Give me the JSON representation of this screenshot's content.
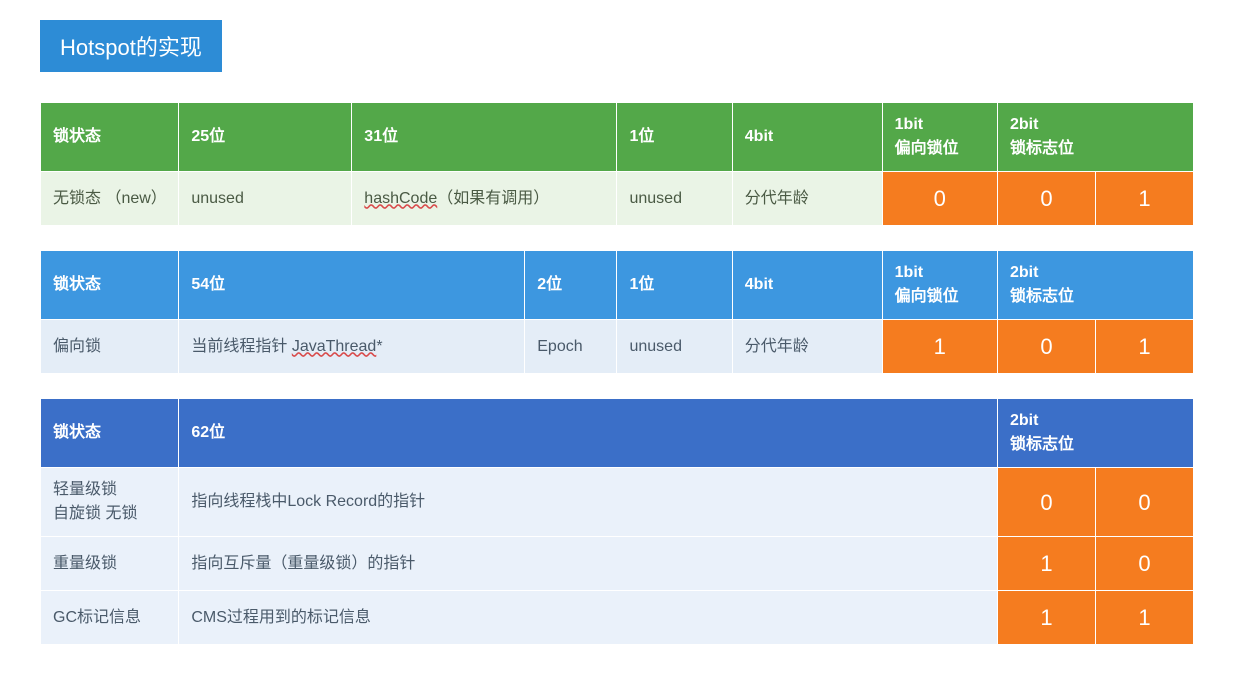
{
  "title": "Hotspot的实现",
  "colors": {
    "title_bg": "#2d8cd6",
    "green": "#53a849",
    "blue": "#3d97e0",
    "dblue": "#3b6fc8",
    "orange": "#f57c1f",
    "row_lgreen": "#eaf4e6",
    "row_lblue": "#e4edf7",
    "row_lblue2": "#eaf1fa"
  },
  "table1": {
    "headers": {
      "c0": "锁状态",
      "c1": "25位",
      "c2": "31位",
      "c3": "1位",
      "c4": "4bit",
      "c5a": "1bit",
      "c5b": "偏向锁位",
      "c6a": "2bit",
      "c6b": "锁标志位"
    },
    "row": {
      "c0": "无锁态 （new）",
      "c1": "unused",
      "c2_prefix": "hashCode",
      "c2_suffix": "（如果有调用）",
      "c3": "unused",
      "c4": "分代年龄",
      "bit_bias": "0",
      "bit_flag_a": "0",
      "bit_flag_b": "1"
    },
    "col_widths": [
      "12%",
      "15%",
      "23%",
      "10%",
      "13%",
      "10%",
      "8.5%",
      "8.5%"
    ]
  },
  "table2": {
    "headers": {
      "c0": "锁状态",
      "c1": "54位",
      "c2": "2位",
      "c3": "1位",
      "c4": "4bit",
      "c5a": "1bit",
      "c5b": "偏向锁位",
      "c6a": "2bit",
      "c6b": "锁标志位"
    },
    "row": {
      "c0": "偏向锁",
      "c1_prefix": "当前线程指针 ",
      "c1_red": "JavaThread",
      "c1_suffix": "*",
      "c2": "Epoch",
      "c3": "unused",
      "c4": "分代年龄",
      "bit_bias": "1",
      "bit_flag_a": "0",
      "bit_flag_b": "1"
    },
    "col_widths": [
      "12%",
      "30%",
      "8%",
      "10%",
      "13%",
      "10%",
      "8.5%",
      "8.5%"
    ]
  },
  "table3": {
    "headers": {
      "c0": "锁状态",
      "c1": "62位",
      "c2a": "2bit",
      "c2b": "锁标志位"
    },
    "rows": [
      {
        "c0": "轻量级锁\n自旋锁 无锁",
        "c1": "指向线程栈中Lock Record的指针",
        "bit_a": "0",
        "bit_b": "0"
      },
      {
        "c0": "重量级锁",
        "c1": "指向互斥量（重量级锁）的指针",
        "bit_a": "1",
        "bit_b": "0"
      },
      {
        "c0": "GC标记信息",
        "c1": "CMS过程用到的标记信息",
        "bit_a": "1",
        "bit_b": "1"
      }
    ],
    "col_widths": [
      "12%",
      "71%",
      "8.5%",
      "8.5%"
    ]
  }
}
